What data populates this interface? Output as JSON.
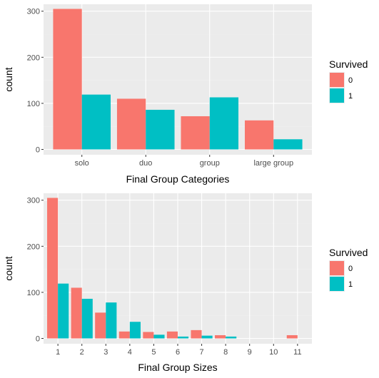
{
  "chart_data": [
    {
      "type": "bar",
      "categories": [
        "solo",
        "duo",
        "group",
        "large group"
      ],
      "series": [
        {
          "name": "0",
          "values": [
            305,
            110,
            72,
            63
          ]
        },
        {
          "name": "1",
          "values": [
            119,
            86,
            113,
            22
          ]
        }
      ],
      "xlabel": "Final Group Categories",
      "ylabel": "count",
      "ylim": [
        0,
        315
      ],
      "yticks": [
        0,
        100,
        200,
        300
      ],
      "legend": {
        "title": "Survived",
        "labels": [
          "0",
          "1"
        ],
        "placement": "right"
      },
      "grid": true
    },
    {
      "type": "bar",
      "categories": [
        "1",
        "2",
        "3",
        "4",
        "5",
        "6",
        "7",
        "8",
        "9",
        "10",
        "11"
      ],
      "series": [
        {
          "name": "0",
          "values": [
            305,
            110,
            56,
            15,
            14,
            15,
            18,
            7,
            0,
            0,
            7
          ]
        },
        {
          "name": "1",
          "values": [
            119,
            86,
            78,
            36,
            8,
            4,
            6,
            4,
            0,
            0,
            0
          ]
        }
      ],
      "xlabel": "Final Group Sizes",
      "ylabel": "count",
      "ylim": [
        0,
        315
      ],
      "yticks": [
        0,
        100,
        200,
        300
      ],
      "legend": {
        "title": "Survived",
        "labels": [
          "0",
          "1"
        ],
        "placement": "right"
      },
      "grid": true
    }
  ],
  "colors": {
    "series_0": "#F8766D",
    "series_1": "#00BFC4",
    "panel": "#EBEBEB",
    "grid_major": "#FFFFFF",
    "grid_minor": "#F2F2F2"
  }
}
